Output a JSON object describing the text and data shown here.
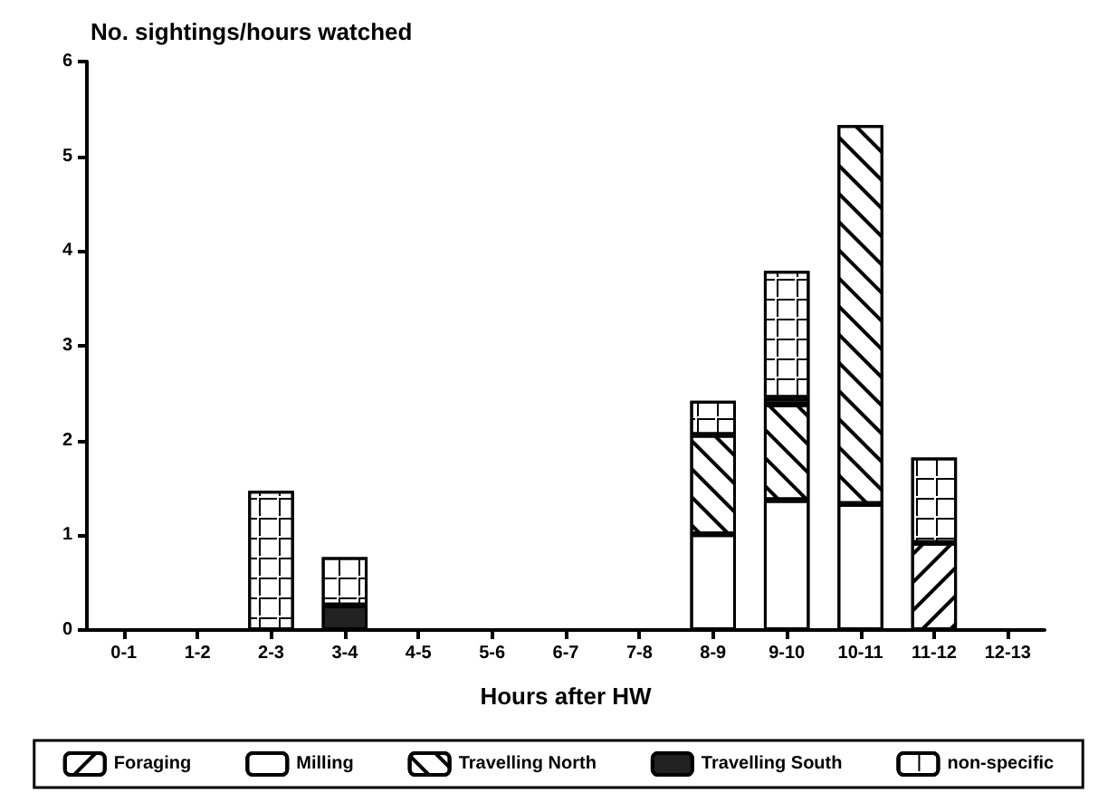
{
  "chart_data": {
    "type": "bar",
    "ylabel": "No. sightings/hours watched",
    "xlabel": "Hours after HW",
    "stacked": true,
    "legend": "bottom",
    "grid": false,
    "categories": [
      "0-1",
      "1-2",
      "2-3",
      "3-4",
      "4-5",
      "5-6",
      "6-7",
      "7-8",
      "8-9",
      "9-10",
      "10-11",
      "11-12",
      "12-13"
    ],
    "ylim": [
      0,
      6
    ],
    "yticks": [
      0,
      1,
      2,
      3,
      4,
      5,
      6
    ],
    "series": [
      {
        "name": "Foraging",
        "color": "#ffffff",
        "values": [
          null,
          null,
          null,
          null,
          null,
          null,
          null,
          null,
          null,
          null,
          null,
          0.92,
          null
        ]
      },
      {
        "name": "Milling",
        "color": "#ffffff",
        "values": [
          null,
          null,
          null,
          null,
          null,
          null,
          null,
          null,
          1.01,
          1.37,
          1.33,
          null,
          null
        ]
      },
      {
        "name": "Travelling North",
        "color": "#ffffff",
        "values": [
          null,
          null,
          null,
          null,
          null,
          null,
          null,
          null,
          1.05,
          1.01,
          4.0,
          null,
          null
        ]
      },
      {
        "name": "Travelling South",
        "color": "#222222",
        "values": [
          null,
          null,
          null,
          0.26,
          null,
          null,
          null,
          null,
          null,
          0.07,
          null,
          null,
          null
        ]
      },
      {
        "name": "non-specific",
        "color": "#ffffff",
        "values": [
          null,
          null,
          1.47,
          0.51,
          null,
          null,
          null,
          null,
          0.36,
          1.34,
          null,
          0.9,
          null
        ]
      }
    ]
  }
}
